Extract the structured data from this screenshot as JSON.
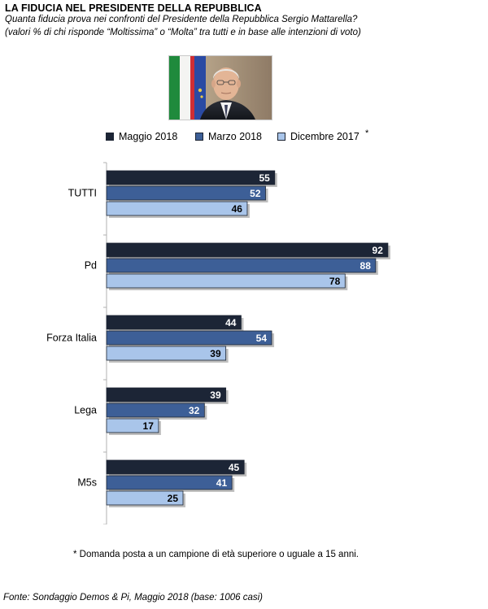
{
  "header": {
    "title": "LA FIDUCIA NEL PRESIDENTE DELLA REPUBBLICA",
    "subtitle_1": "Quanta fiducia prova nei confronti del Presidente della Repubblica Sergio Mattarella?",
    "subtitle_2": "(valori % di chi risponde “Moltissima” o “Molta” tra tutti e in base alle intenzioni di voto)"
  },
  "legend_star": "*",
  "footnote": "* Domanda posta a un campione di età superiore o uguale a 15 anni.",
  "source": "Fonte: Sondaggio Demos & Pi, Maggio 2018 (base: 1006 casi)",
  "chart_data": {
    "type": "bar",
    "orientation": "horizontal",
    "categories": [
      "TUTTI",
      "Pd",
      "Forza Italia",
      "Lega",
      "M5s"
    ],
    "series": [
      {
        "name": "Maggio 2018",
        "values": [
          55,
          92,
          44,
          39,
          45
        ],
        "color": "#1c2536"
      },
      {
        "name": "Marzo 2018",
        "values": [
          52,
          88,
          54,
          32,
          41
        ],
        "color": "#3d5f97"
      },
      {
        "name": "Dicembre 2017",
        "values": [
          46,
          78,
          39,
          17,
          25
        ],
        "color": "#a9c5ea"
      }
    ],
    "xlim": [
      0,
      100
    ],
    "grid": false,
    "legend_position": "top"
  }
}
